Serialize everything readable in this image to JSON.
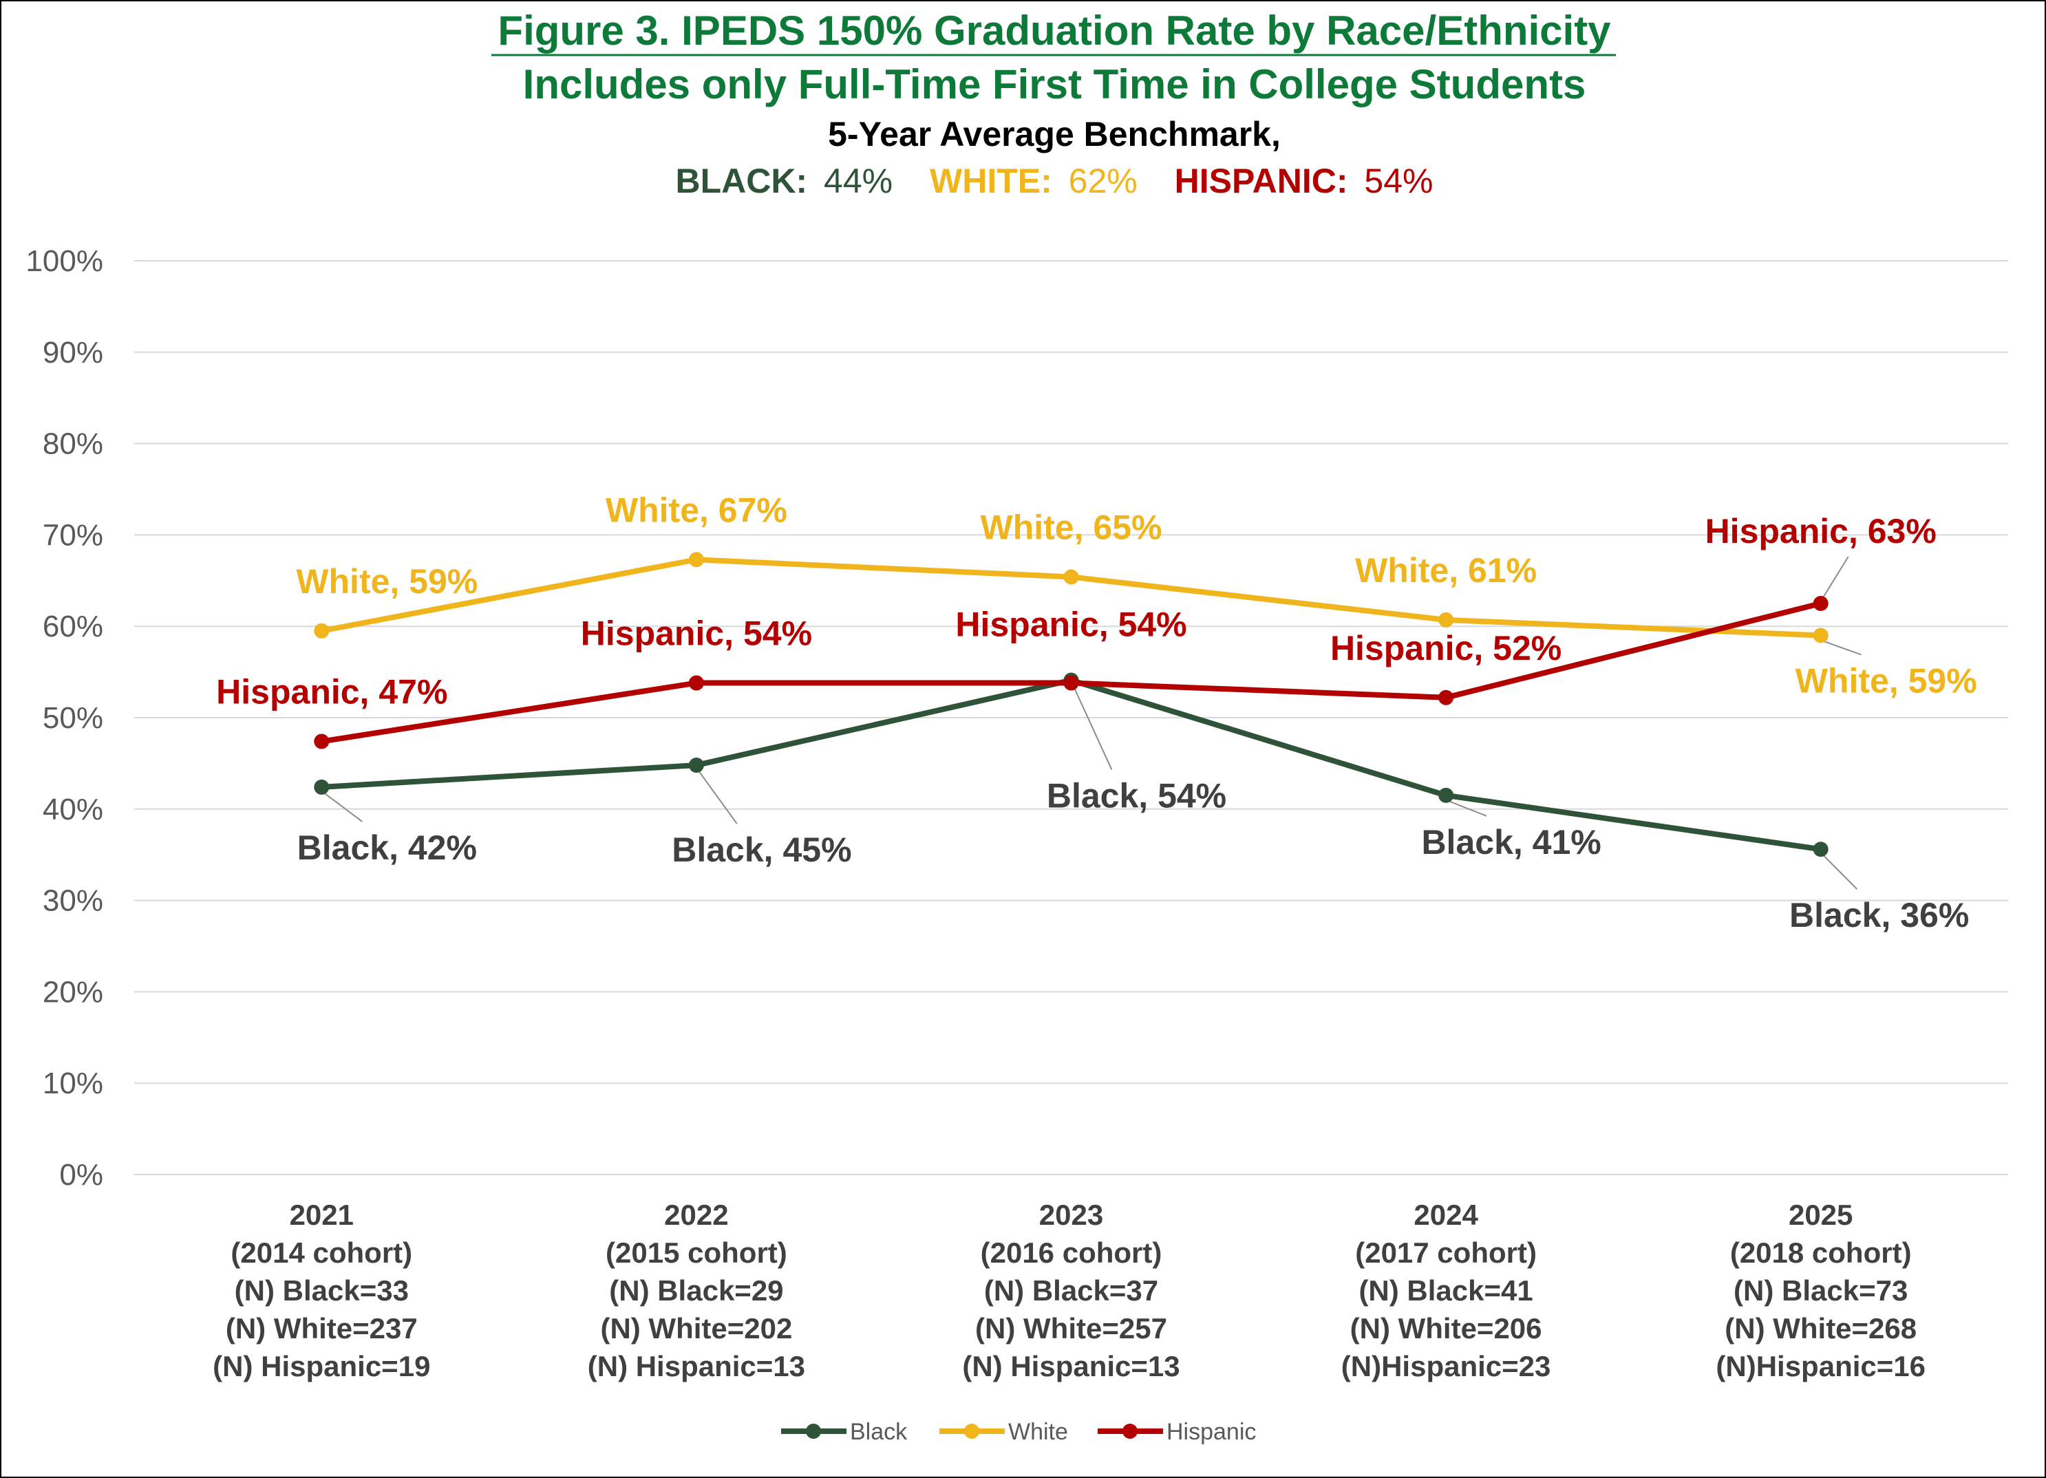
{
  "colors": {
    "black_series": "#2E5339",
    "white_series": "#F0B41C",
    "hispanic_series": "#B30000",
    "title_green": "#0E7A3A",
    "label_dark": "#404040",
    "gridline": "#D9D9D9"
  },
  "header": {
    "title_line1": "Figure 3. IPEDS 150% Graduation Rate by Race/Ethnicity",
    "title_line2": "Includes only Full-Time First Time in College Students",
    "subtitle": "5-Year Average Benchmark,",
    "benchmarks": [
      {
        "label": "BLACK:",
        "value": "44%",
        "color": "#2E5339"
      },
      {
        "label": "WHITE:",
        "value": "62%",
        "color": "#F0B41C"
      },
      {
        "label": "HISPANIC:",
        "value": "54%",
        "color": "#B30000"
      }
    ]
  },
  "chart_data": {
    "type": "line",
    "title": "Figure 3. IPEDS 150% Graduation Rate by Race/Ethnicity",
    "ylim": [
      0,
      100
    ],
    "yticks": [
      "0%",
      "10%",
      "20%",
      "30%",
      "40%",
      "50%",
      "60%",
      "70%",
      "80%",
      "90%",
      "100%"
    ],
    "grid": true,
    "legend_position": "bottom",
    "categories": [
      [
        "2021",
        "(2014 cohort)",
        "(N) Black=33",
        "(N) White=237",
        "(N) Hispanic=19"
      ],
      [
        "2022",
        "(2015 cohort)",
        "(N) Black=29",
        "(N) White=202",
        "(N) Hispanic=13"
      ],
      [
        "2023",
        "(2016 cohort)",
        "(N) Black=37",
        "(N) White=257",
        "(N) Hispanic=13"
      ],
      [
        "2024",
        "(2017 cohort)",
        "(N) Black=41",
        "(N) White=206",
        "(N)Hispanic=23"
      ],
      [
        "2025",
        "(2018 cohort)",
        "(N) Black=73",
        "(N) White=268",
        "(N)Hispanic=16"
      ]
    ],
    "series": [
      {
        "name": "Black",
        "color": "#2E5339",
        "values": [
          42.4,
          44.8,
          54.1,
          41.5,
          35.6
        ],
        "labels": [
          "Black, 42%",
          "Black, 45%",
          "Black, 54%",
          "Black, 41%",
          "Black, 36%"
        ],
        "label_color": "#404040"
      },
      {
        "name": "White",
        "color": "#F0B41C",
        "values": [
          59.5,
          67.3,
          65.4,
          60.7,
          59.0
        ],
        "labels": [
          "White, 59%",
          "White, 67%",
          "White, 65%",
          "White, 61%",
          "White, 59%"
        ],
        "label_color": "#F0B41C"
      },
      {
        "name": "Hispanic",
        "color": "#B30000",
        "values": [
          47.4,
          53.8,
          53.8,
          52.2,
          62.5
        ],
        "labels": [
          "Hispanic, 47%",
          "Hispanic, 54%",
          "Hispanic, 54%",
          "Hispanic, 52%",
          "Hispanic, 63%"
        ],
        "label_color": "#B30000"
      }
    ]
  }
}
